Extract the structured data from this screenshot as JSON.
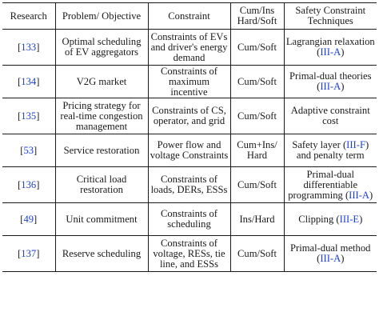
{
  "table": {
    "headers": {
      "research": "Research",
      "problem": "Problem/ Objective",
      "constraint": "Constraint",
      "type": "Cum/Ins Hard/Soft",
      "technique": "Safety Constraint Techniques"
    },
    "colors": {
      "link": "#1b3fd6",
      "text": "#1a1a1a",
      "rule": "#1a1a1a"
    },
    "rows": [
      {
        "ref": "133",
        "problem": "Optimal scheduling of EV aggregators",
        "constraint": "Constraints of EVs and driver's energy demand",
        "type": "Cum/Soft",
        "technique": "Lagrangian relaxation",
        "technique_ref": "III-A"
      },
      {
        "ref": "134",
        "problem": "V2G market",
        "constraint": "Constraints of maximum incentive",
        "type": "Cum/Soft",
        "technique": "Primal-dual theories",
        "technique_ref": "III-A"
      },
      {
        "ref": "135",
        "problem": "Pricing strategy for real-time congestion management",
        "constraint": "Constraints of CS, operator, and grid",
        "type": "Cum/Soft",
        "technique": "Adaptive constraint cost",
        "technique_ref": ""
      },
      {
        "ref": "53",
        "problem": "Service restoration",
        "constraint": "Power flow and voltage Constraints",
        "type": "Cum+Ins/ Hard",
        "technique": "Safety layer",
        "technique_ref": "III-F",
        "technique_suffix": "and penalty term"
      },
      {
        "ref": "136",
        "problem": "Critical load restoration",
        "constraint": "Constraints of loads, DERs, ESSs",
        "type": "Cum/Soft",
        "technique": "Primal-dual differentiable programming",
        "technique_ref": "III-A"
      },
      {
        "ref": "49",
        "problem": "Unit commitment",
        "constraint": "Constraints of scheduling",
        "type": "Ins/Hard",
        "technique": "Clipping",
        "technique_ref": "III-E"
      },
      {
        "ref": "137",
        "problem": "Reserve scheduling",
        "constraint": "Constraints of voltage, RESs, tie line, and ESSs",
        "type": "Cum/Soft",
        "technique": "Primal-dual method",
        "technique_ref": "III-A"
      }
    ]
  }
}
